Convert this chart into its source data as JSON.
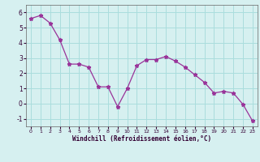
{
  "x": [
    0,
    1,
    2,
    3,
    4,
    5,
    6,
    7,
    8,
    9,
    10,
    11,
    12,
    13,
    14,
    15,
    16,
    17,
    18,
    19,
    20,
    21,
    22,
    23
  ],
  "y": [
    5.6,
    5.8,
    5.3,
    4.2,
    2.6,
    2.6,
    2.4,
    1.1,
    1.1,
    -0.2,
    1.0,
    2.5,
    2.9,
    2.9,
    3.1,
    2.8,
    2.4,
    1.9,
    1.4,
    0.7,
    0.8,
    0.7,
    -0.05,
    -1.15
  ],
  "line_color": "#993399",
  "marker": "*",
  "bg_color": "#d6f0f0",
  "grid_color": "#aadddd",
  "xlabel": "Windchill (Refroidissement éolien,°C)",
  "xlim": [
    -0.5,
    23.5
  ],
  "ylim": [
    -1.5,
    6.5
  ],
  "yticks": [
    -1,
    0,
    1,
    2,
    3,
    4,
    5,
    6
  ],
  "xticks": [
    0,
    1,
    2,
    3,
    4,
    5,
    6,
    7,
    8,
    9,
    10,
    11,
    12,
    13,
    14,
    15,
    16,
    17,
    18,
    19,
    20,
    21,
    22,
    23
  ]
}
